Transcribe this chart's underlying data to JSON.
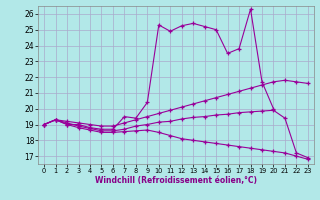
{
  "xlabel": "Windchill (Refroidissement éolien,°C)",
  "background_color": "#b2e8e8",
  "grid_color": "#aaaacc",
  "line_color": "#990099",
  "xlim": [
    -0.5,
    23.5
  ],
  "ylim": [
    16.5,
    26.5
  ],
  "yticks": [
    17,
    18,
    19,
    20,
    21,
    22,
    23,
    24,
    25,
    26
  ],
  "xticks": [
    0,
    1,
    2,
    3,
    4,
    5,
    6,
    7,
    8,
    9,
    10,
    11,
    12,
    13,
    14,
    15,
    16,
    17,
    18,
    19,
    20,
    21,
    22,
    23
  ],
  "series": [
    {
      "x": [
        0,
        1,
        2,
        3,
        4,
        5,
        6,
        7,
        8,
        9,
        10,
        11,
        12,
        13,
        14,
        15,
        16,
        17,
        18,
        19,
        20
      ],
      "y": [
        19.0,
        19.3,
        19.0,
        19.0,
        18.8,
        18.7,
        18.7,
        19.5,
        19.4,
        20.4,
        25.3,
        24.9,
        25.25,
        25.4,
        25.2,
        25.0,
        23.5,
        23.8,
        26.3,
        21.7,
        20.0
      ]
    },
    {
      "x": [
        0,
        1,
        2,
        3,
        4,
        5,
        6,
        7,
        8,
        9,
        10,
        11,
        12,
        13,
        14,
        15,
        16,
        17,
        18,
        19,
        20,
        21,
        22,
        23
      ],
      "y": [
        19.0,
        19.3,
        19.2,
        19.1,
        19.0,
        18.9,
        18.9,
        19.1,
        19.3,
        19.5,
        19.7,
        19.9,
        20.1,
        20.3,
        20.5,
        20.7,
        20.9,
        21.1,
        21.3,
        21.5,
        21.7,
        21.8,
        21.7,
        21.6
      ]
    },
    {
      "x": [
        0,
        1,
        2,
        3,
        4,
        5,
        6,
        7,
        8,
        9,
        10,
        11,
        12,
        13,
        14,
        15,
        16,
        17,
        18,
        19,
        20,
        21,
        22,
        23
      ],
      "y": [
        19.0,
        19.3,
        19.1,
        18.9,
        18.75,
        18.6,
        18.6,
        18.7,
        18.9,
        19.0,
        19.15,
        19.2,
        19.35,
        19.45,
        19.5,
        19.6,
        19.65,
        19.75,
        19.8,
        19.85,
        19.9,
        19.4,
        17.2,
        16.9
      ]
    },
    {
      "x": [
        0,
        1,
        2,
        3,
        4,
        5,
        6,
        7,
        8,
        9,
        10,
        11,
        12,
        13,
        14,
        15,
        16,
        17,
        18,
        19,
        20,
        21,
        22,
        23
      ],
      "y": [
        19.0,
        19.3,
        19.0,
        18.8,
        18.65,
        18.5,
        18.5,
        18.55,
        18.6,
        18.65,
        18.5,
        18.3,
        18.1,
        18.0,
        17.9,
        17.8,
        17.7,
        17.6,
        17.5,
        17.4,
        17.3,
        17.2,
        17.0,
        16.8
      ]
    }
  ]
}
